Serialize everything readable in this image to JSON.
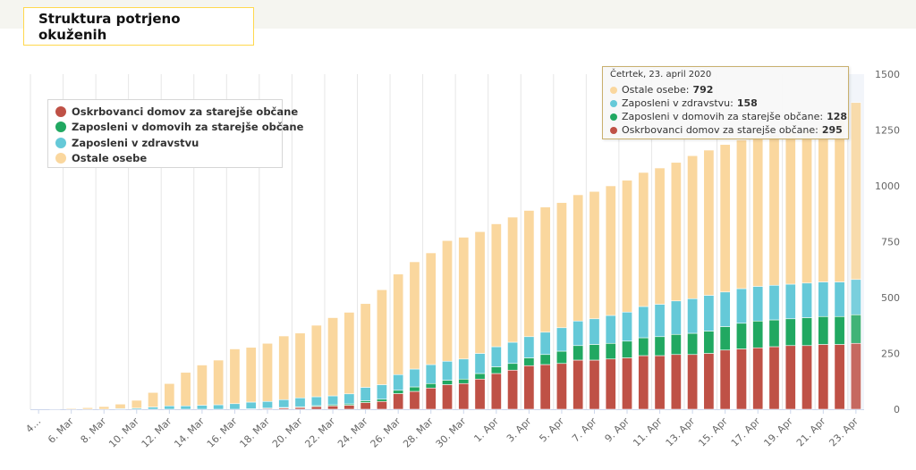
{
  "title": "Struktura potrjeno okuženih",
  "tooltip": {
    "date": "Četrtek, 23. april 2020",
    "rows": [
      {
        "label": "Ostale osebe:",
        "value": "792",
        "color": "#fad79e"
      },
      {
        "label": "Zaposleni v zdravstvu:",
        "value": "158",
        "color": "#65c9d8"
      },
      {
        "label": "Zaposleni v domovih za starejše občane:",
        "value": "128",
        "color": "#21a861"
      },
      {
        "label": "Oskrbovanci domov za starejše občane:",
        "value": "295",
        "color": "#bf5146"
      }
    ]
  },
  "chart_data": {
    "type": "bar",
    "stacked": true,
    "ylim": [
      0,
      1500
    ],
    "yticks": [
      0,
      250,
      500,
      750,
      1000,
      1250,
      1500
    ],
    "y_axis_position": "right",
    "grid": "vertical",
    "legend_position": "top-left",
    "x_tick_labels": [
      "4…",
      "6. Mar",
      "8. Mar",
      "10. Mar",
      "12. Mar",
      "14. Mar",
      "16. Mar",
      "18. Mar",
      "20. Mar",
      "22. Mar",
      "24. Mar",
      "26. Mar",
      "28. Mar",
      "30. Mar",
      "1. Apr",
      "3. Apr",
      "5. Apr",
      "7. Apr",
      "9. Apr",
      "11. Apr",
      "13. Apr",
      "15. Apr",
      "17. Apr",
      "19. Apr",
      "21. Apr",
      "23. Apr"
    ],
    "categories": [
      "4. Mar",
      "5. Mar",
      "6. Mar",
      "7. Mar",
      "8. Mar",
      "9. Mar",
      "10. Mar",
      "11. Mar",
      "12. Mar",
      "13. Mar",
      "14. Mar",
      "15. Mar",
      "16. Mar",
      "17. Mar",
      "18. Mar",
      "19. Mar",
      "20. Mar",
      "21. Mar",
      "22. Mar",
      "23. Mar",
      "24. Mar",
      "25. Mar",
      "26. Mar",
      "27. Mar",
      "28. Mar",
      "29. Mar",
      "30. Mar",
      "31. Mar",
      "1. Apr",
      "2. Apr",
      "3. Apr",
      "4. Apr",
      "5. Apr",
      "6. Apr",
      "7. Apr",
      "8. Apr",
      "9. Apr",
      "10. Apr",
      "11. Apr",
      "12. Apr",
      "13. Apr",
      "14. Apr",
      "15. Apr",
      "16. Apr",
      "17. Apr",
      "18. Apr",
      "19. Apr",
      "20. Apr",
      "21. Apr",
      "22. Apr",
      "23. Apr"
    ],
    "highlighted_category": "23. Apr",
    "series": [
      {
        "name": "Oskrbovanci domov za starejše občane",
        "color": "#bf5146",
        "values": [
          0,
          0,
          0,
          0,
          0,
          0,
          0,
          0,
          0,
          0,
          0,
          0,
          0,
          2,
          4,
          6,
          8,
          12,
          15,
          18,
          30,
          35,
          70,
          80,
          95,
          110,
          115,
          135,
          160,
          175,
          195,
          200,
          205,
          220,
          220,
          225,
          230,
          240,
          240,
          245,
          245,
          250,
          265,
          270,
          275,
          280,
          285,
          285,
          290,
          290,
          295
        ]
      },
      {
        "name": "Zaposleni v domovih za starejše občane",
        "color": "#21a861",
        "values": [
          0,
          0,
          0,
          0,
          0,
          0,
          0,
          0,
          0,
          0,
          0,
          0,
          0,
          0,
          1,
          2,
          3,
          4,
          5,
          6,
          8,
          10,
          15,
          20,
          20,
          20,
          20,
          25,
          30,
          30,
          35,
          45,
          55,
          65,
          70,
          70,
          75,
          80,
          85,
          90,
          95,
          100,
          105,
          115,
          120,
          120,
          120,
          125,
          125,
          125,
          128
        ]
      },
      {
        "name": "Zaposleni v zdravstvu",
        "color": "#65c9d8",
        "values": [
          0,
          0,
          0,
          0,
          0,
          3,
          5,
          10,
          15,
          15,
          18,
          20,
          25,
          30,
          30,
          35,
          40,
          40,
          40,
          45,
          60,
          65,
          70,
          80,
          85,
          85,
          90,
          90,
          90,
          95,
          95,
          100,
          105,
          110,
          115,
          125,
          130,
          140,
          145,
          150,
          155,
          160,
          155,
          155,
          155,
          155,
          155,
          155,
          155,
          155,
          158
        ]
      },
      {
        "name": "Ostale osebe",
        "color": "#fad79e",
        "values": [
          0,
          2,
          4,
          7,
          12,
          20,
          35,
          65,
          100,
          150,
          180,
          200,
          245,
          245,
          260,
          285,
          290,
          320,
          350,
          365,
          375,
          425,
          450,
          480,
          500,
          540,
          545,
          545,
          550,
          560,
          565,
          560,
          560,
          565,
          570,
          580,
          590,
          600,
          610,
          620,
          640,
          650,
          660,
          665,
          670,
          675,
          680,
          685,
          690,
          730,
          792
        ]
      }
    ]
  }
}
